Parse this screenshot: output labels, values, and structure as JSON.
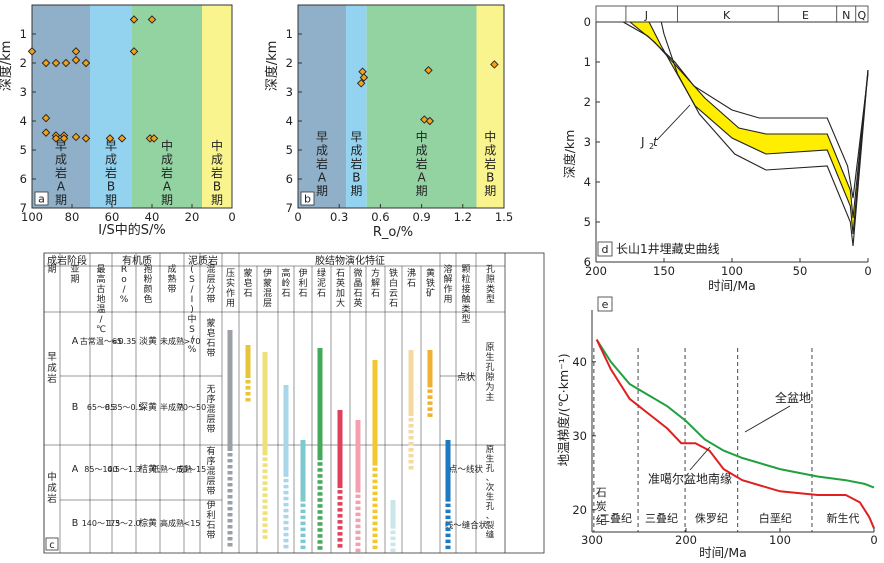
{
  "chart_data": [
    {
      "id": "a",
      "type": "scatter",
      "panel_label": "a",
      "xlabel": "I/S中的S/%",
      "ylabel": "深度/km",
      "xlim": [
        100,
        0
      ],
      "ylim": [
        0,
        7
      ],
      "x_ticks": [
        "100",
        "80",
        "60",
        "40",
        "20",
        "0"
      ],
      "y_ticks": [
        "1",
        "2",
        "3",
        "4",
        "5",
        "6",
        "7"
      ],
      "zones": [
        {
          "label": "早成岩A期",
          "from": 100,
          "to": 71,
          "color": "#8fb0c8"
        },
        {
          "label": "早成岩B期",
          "from": 71,
          "to": 50,
          "color": "#93d3ef"
        },
        {
          "label": "中成岩A期",
          "from": 50,
          "to": 15,
          "color": "#93d3a2"
        },
        {
          "label": "中成岩B期",
          "from": 15,
          "to": 0,
          "color": "#faf48e"
        }
      ],
      "points": [
        {
          "x": 100,
          "y": 1.6
        },
        {
          "x": 93,
          "y": 2.0
        },
        {
          "x": 88,
          "y": 2.0
        },
        {
          "x": 83,
          "y": 2.0
        },
        {
          "x": 78,
          "y": 1.9
        },
        {
          "x": 78,
          "y": 1.6
        },
        {
          "x": 73,
          "y": 2.0
        },
        {
          "x": 93,
          "y": 3.9
        },
        {
          "x": 93,
          "y": 4.4
        },
        {
          "x": 88,
          "y": 4.5
        },
        {
          "x": 88,
          "y": 4.6
        },
        {
          "x": 84,
          "y": 4.5
        },
        {
          "x": 84,
          "y": 4.6
        },
        {
          "x": 78,
          "y": 4.55
        },
        {
          "x": 73,
          "y": 4.6
        },
        {
          "x": 61,
          "y": 4.6
        },
        {
          "x": 55,
          "y": 4.6
        },
        {
          "x": 41,
          "y": 4.6
        },
        {
          "x": 39,
          "y": 4.6
        },
        {
          "x": 49,
          "y": 0.5
        },
        {
          "x": 40,
          "y": 0.5
        },
        {
          "x": 49,
          "y": 1.6
        }
      ]
    },
    {
      "id": "b",
      "type": "scatter",
      "panel_label": "b",
      "xlabel": "R_o/%",
      "ylabel": "深度/km",
      "xlim": [
        0,
        1.5
      ],
      "ylim": [
        0,
        7
      ],
      "x_ticks": [
        "0",
        "0.3",
        "0.6",
        "0.9",
        "1.2",
        "1.5"
      ],
      "y_ticks": [
        "1",
        "2",
        "3",
        "4",
        "5",
        "6",
        "7"
      ],
      "zones": [
        {
          "label": "早成岩A期",
          "from": 0,
          "to": 0.35,
          "color": "#8fb0c8"
        },
        {
          "label": "早成岩B期",
          "from": 0.35,
          "to": 0.5,
          "color": "#93d3ef"
        },
        {
          "label": "中成岩A期",
          "from": 0.5,
          "to": 1.3,
          "color": "#93d3a2"
        },
        {
          "label": "中成岩B期",
          "from": 1.3,
          "to": 1.5,
          "color": "#faf48e"
        }
      ],
      "points": [
        {
          "x": 0.47,
          "y": 2.3
        },
        {
          "x": 0.48,
          "y": 2.5
        },
        {
          "x": 0.46,
          "y": 2.7
        },
        {
          "x": 0.95,
          "y": 2.25
        },
        {
          "x": 0.92,
          "y": 3.95
        },
        {
          "x": 0.96,
          "y": 4.0
        },
        {
          "x": 1.43,
          "y": 2.05
        }
      ]
    },
    {
      "id": "d",
      "type": "line",
      "panel_label": "d",
      "title": "长山1井埋藏史曲线",
      "xlabel": "时间/Ma",
      "ylabel": "深度/km",
      "xlim": [
        200,
        0
      ],
      "ylim": [
        0,
        6
      ],
      "x_ticks": [
        "200",
        "150",
        "100",
        "50",
        "0"
      ],
      "y_ticks": [
        "0",
        "1",
        "2",
        "3",
        "4",
        "5",
        "6"
      ],
      "periods": [
        "J",
        "K",
        "E",
        "N",
        "Q"
      ],
      "annotation": "J2t",
      "series": [
        {
          "values": [
            [
              180,
              0
            ],
            [
              162,
              0.35
            ],
            [
              142,
              1.0
            ],
            [
              128,
              1.6
            ],
            [
              100,
              2.2
            ],
            [
              80,
              2.4
            ],
            [
              30,
              2.4
            ],
            [
              15,
              3.6
            ],
            [
              11,
              4.4
            ],
            [
              0,
              1.3
            ]
          ]
        },
        {
          "values": [
            [
              175,
              0
            ],
            [
              157,
              0.5
            ],
            [
              137,
              1.25
            ],
            [
              120,
              1.9
            ],
            [
              95,
              2.65
            ],
            [
              75,
              2.8
            ],
            [
              30,
              2.8
            ],
            [
              13,
              4.2
            ],
            [
              11,
              4.9
            ],
            [
              0,
              1.2
            ]
          ]
        },
        {
          "values": [
            [
              161,
              0
            ],
            [
              152,
              0.6
            ],
            [
              137,
              1.5
            ],
            [
              127,
              2.1
            ],
            [
              100,
              2.9
            ],
            [
              75,
              3.3
            ],
            [
              30,
              3.2
            ],
            [
              13,
              4.6
            ],
            [
              11,
              5.3
            ],
            [
              0,
              1.2
            ]
          ]
        },
        {
          "values": [
            [
              152,
              0
            ],
            [
              150,
              0.3
            ],
            [
              140,
              1.3
            ],
            [
              124,
              2.3
            ],
            [
              98,
              3.3
            ],
            [
              75,
              3.7
            ],
            [
              30,
              3.6
            ],
            [
              13,
              5.0
            ],
            [
              11,
              5.6
            ],
            [
              0,
              1.2
            ]
          ]
        }
      ]
    },
    {
      "id": "e",
      "type": "line",
      "panel_label": "e",
      "xlabel": "时间/Ma",
      "ylabel": "地温梯度/(℃·km⁻¹)",
      "xlim": [
        300,
        0
      ],
      "ylim": [
        17,
        47
      ],
      "x_ticks": [
        "300",
        "200",
        "100",
        "0"
      ],
      "y_ticks": [
        "20",
        "30",
        "40"
      ],
      "periods": [
        "石炭纪",
        "二叠纪",
        "三叠纪",
        "侏罗纪",
        "白垩纪",
        "新生代"
      ],
      "series": [
        {
          "name": "全盆地",
          "color": "#22a040",
          "values": [
            [
              295,
              43
            ],
            [
              280,
              40
            ],
            [
              260,
              37
            ],
            [
              240,
              35.5
            ],
            [
              220,
              34
            ],
            [
              200,
              32
            ],
            [
              180,
              29.5
            ],
            [
              160,
              28
            ],
            [
              140,
              27
            ],
            [
              100,
              25.5
            ],
            [
              60,
              24.5
            ],
            [
              30,
              24
            ],
            [
              10,
              23.5
            ],
            [
              0,
              23
            ]
          ]
        },
        {
          "name": "准噶尔盆地南缘",
          "color": "#e02020",
          "values": [
            [
              295,
              43
            ],
            [
              280,
              39
            ],
            [
              260,
              35
            ],
            [
              240,
              33
            ],
            [
              220,
              31
            ],
            [
              205,
              29
            ],
            [
              190,
              29
            ],
            [
              175,
              28
            ],
            [
              160,
              25.5
            ],
            [
              140,
              24
            ],
            [
              100,
              22.5
            ],
            [
              60,
              22
            ],
            [
              30,
              22
            ],
            [
              15,
              21
            ],
            [
              5,
              19
            ],
            [
              0,
              17.5
            ]
          ]
        }
      ]
    },
    {
      "id": "c",
      "type": "table",
      "panel_label": "c",
      "header_groups": [
        "成岩阶段",
        "有机质",
        "泥质岩",
        "胶结物演化特征"
      ],
      "columns": [
        "期",
        "亚期",
        "最高古地温/℃",
        "R_o/%",
        "孢粉颜色",
        "成熟带",
        "(S/I)中S/%",
        "混层分带",
        "压实作用",
        "蒙皂石",
        "伊蒙混层",
        "高岭石",
        "伊利石",
        "绿泥石",
        "石英加大",
        "微晶石英",
        "方解石",
        "铁白云石",
        "沸石",
        "黄铁矿",
        "溶解作用",
        "颗粒接触类型",
        "孔隙类型"
      ],
      "rows": [
        {
          "stage": "早成岩",
          "sub": "A",
          "temp": "古常温～65",
          "ro": "<0.35",
          "color": "淡黄",
          "maturity": "未成熟",
          "s": ">70",
          "zone": "蒙皂石带",
          "contact": "点状",
          "pore": "原生孔隙为主"
        },
        {
          "stage": "早成岩",
          "sub": "B",
          "temp": "65～85",
          "ro": "0.35～0.5",
          "color": "深黄",
          "maturity": "半成熟",
          "s": "70～50",
          "zone": "无序混层带",
          "contact": "点状",
          "pore": "原生孔隙为主"
        },
        {
          "stage": "中成岩",
          "sub": "A",
          "temp": "85～140",
          "ro": "0.5～1.3",
          "color": "桔黄",
          "maturity": "低熟～成熟",
          "s": "50～15",
          "zone": "有序混层带",
          "contact": "点～线状",
          "pore": "原生孔、次生孔、裂缝"
        },
        {
          "stage": "中成岩",
          "sub": "B",
          "temp": "140～175",
          "ro": "1.3～2.0",
          "color": "棕黄",
          "maturity": "高成熟",
          "s": "<15",
          "zone": "伊利石带",
          "contact": "线～缝合状",
          "pore": "原生孔、次生孔、裂缝"
        }
      ]
    }
  ]
}
